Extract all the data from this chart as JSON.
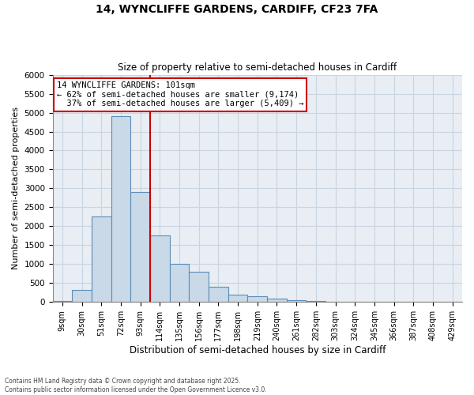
{
  "title1": "14, WYNCLIFFE GARDENS, CARDIFF, CF23 7FA",
  "title2": "Size of property relative to semi-detached houses in Cardiff",
  "xlabel": "Distribution of semi-detached houses by size in Cardiff",
  "ylabel": "Number of semi-detached properties",
  "categories": [
    "9sqm",
    "30sqm",
    "51sqm",
    "72sqm",
    "93sqm",
    "114sqm",
    "135sqm",
    "156sqm",
    "177sqm",
    "198sqm",
    "219sqm",
    "240sqm",
    "261sqm",
    "282sqm",
    "303sqm",
    "324sqm",
    "345sqm",
    "366sqm",
    "387sqm",
    "408sqm",
    "429sqm"
  ],
  "values": [
    30,
    320,
    2250,
    4900,
    2900,
    1750,
    1000,
    800,
    400,
    200,
    150,
    90,
    50,
    25,
    12,
    6,
    3,
    1,
    0,
    0,
    0
  ],
  "bar_color": "#c9d9e8",
  "bar_edge_color": "#5b8db8",
  "red_line_x": 4.5,
  "annotation_text": "14 WYNCLIFFE GARDENS: 101sqm\n← 62% of semi-detached houses are smaller (9,174)\n  37% of semi-detached houses are larger (5,409) →",
  "annotation_box_color": "#ffffff",
  "annotation_border_color": "#cc0000",
  "ylim": [
    0,
    6000
  ],
  "yticks": [
    0,
    500,
    1000,
    1500,
    2000,
    2500,
    3000,
    3500,
    4000,
    4500,
    5000,
    5500,
    6000
  ],
  "grid_color": "#c8d4e0",
  "background_color": "#e8eef4",
  "footer1": "Contains HM Land Registry data © Crown copyright and database right 2025.",
  "footer2": "Contains public sector information licensed under the Open Government Licence v3.0."
}
